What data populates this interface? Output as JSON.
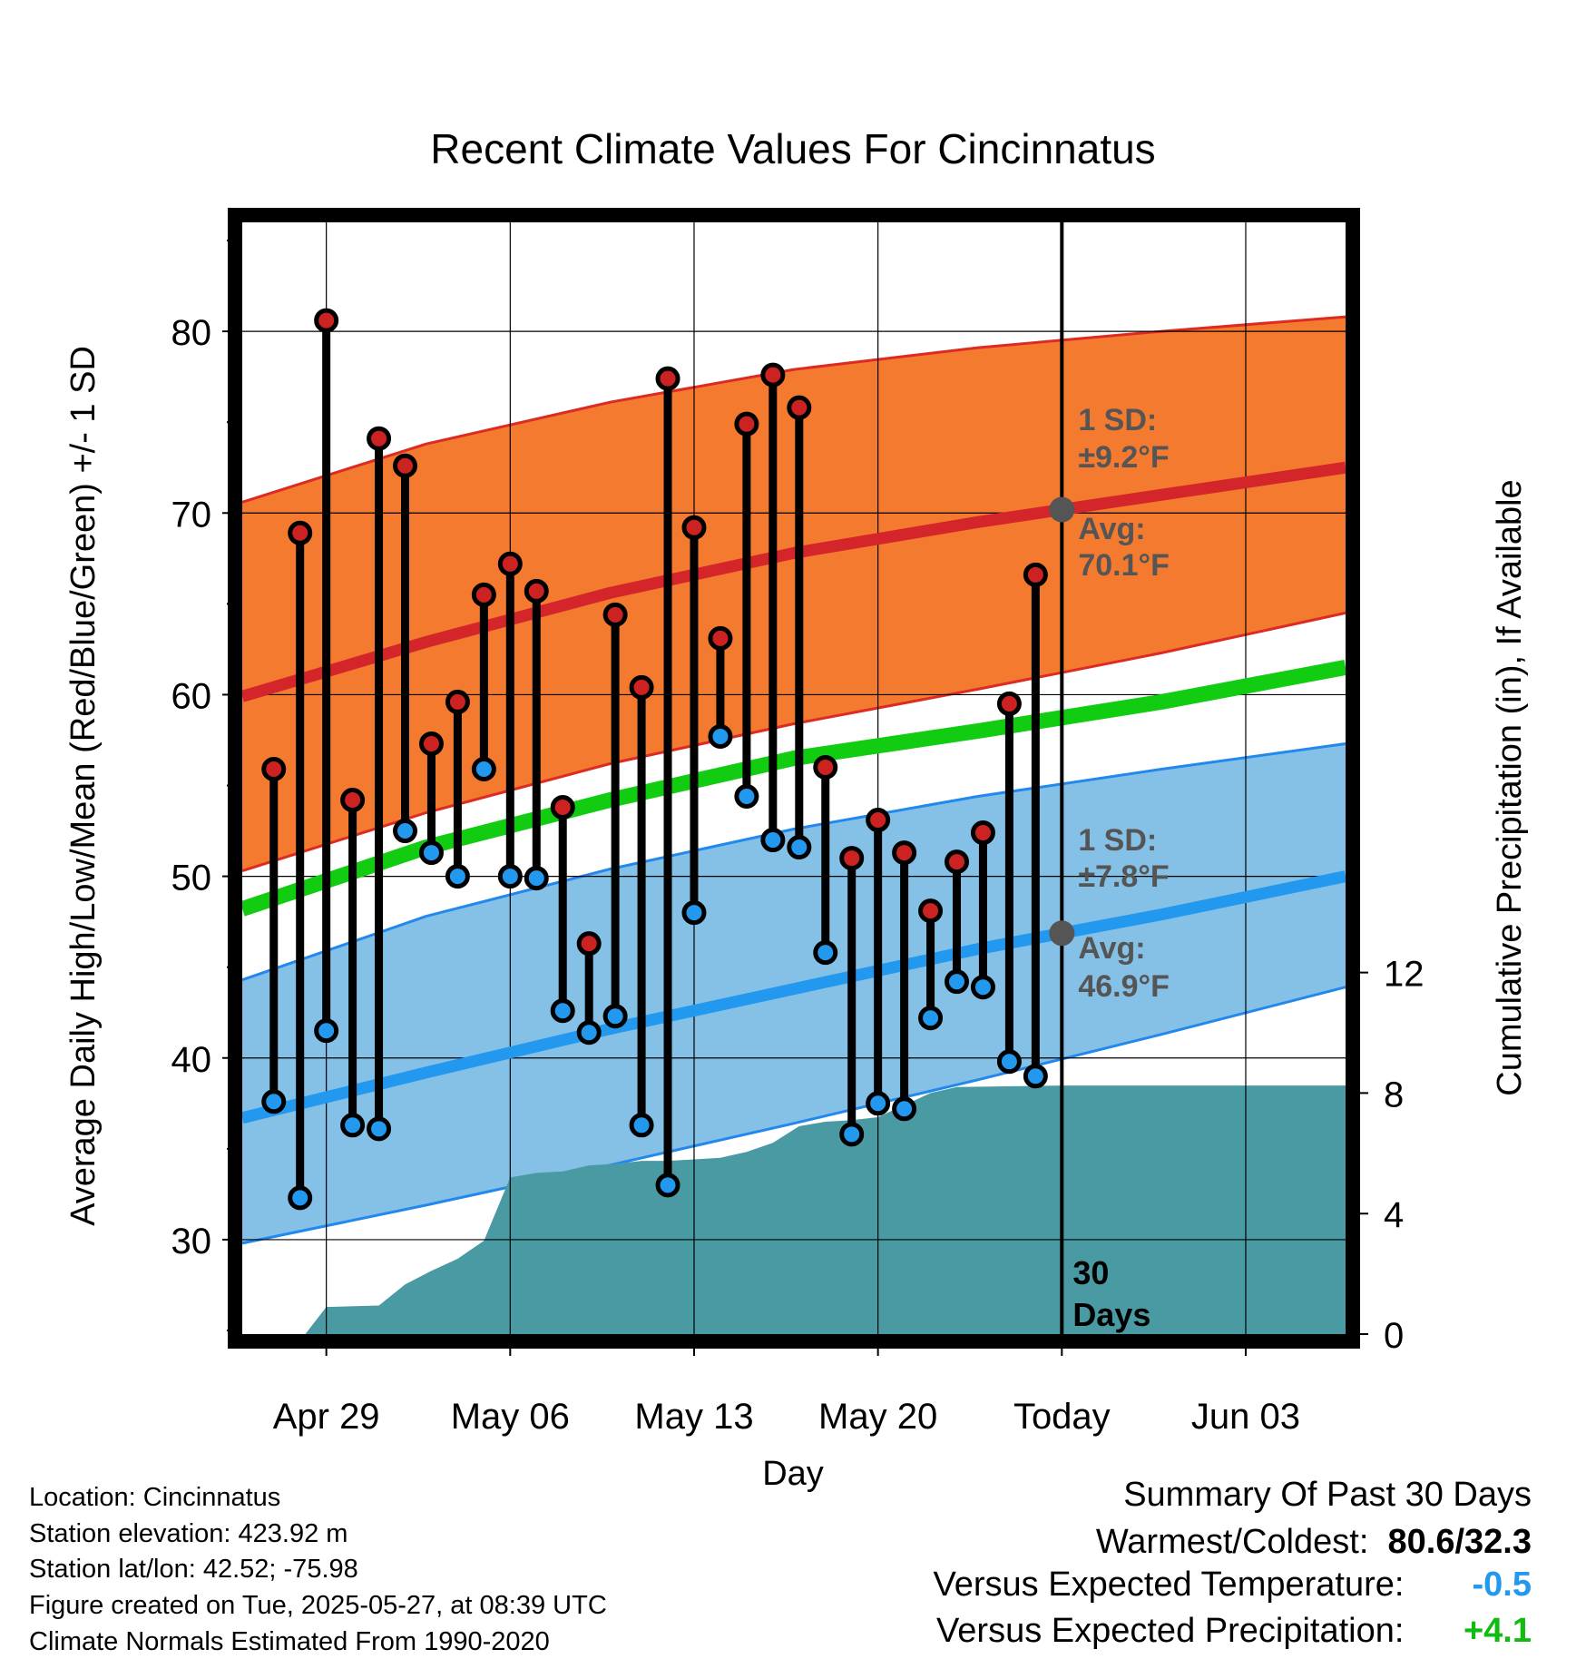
{
  "chart_data": {
    "type": "line",
    "title": "Recent Climate Values For Cincinnatus",
    "xlabel": "Day",
    "ylabel": "Average Daily High/Low/Mean (Red/Blue/Green) +/- 1 SD",
    "y2label": "Cumulative Precipitation (in), If Available",
    "xlim": [
      -3.2,
      38.8
    ],
    "ylim": [
      24.8,
      86
    ],
    "y2lim": [
      0,
      36.9
    ],
    "x_ticks": [
      {
        "x": 0,
        "label": "Apr 29"
      },
      {
        "x": 7,
        "label": "May 06"
      },
      {
        "x": 14,
        "label": "May 13"
      },
      {
        "x": 21,
        "label": "May 20"
      },
      {
        "x": 28,
        "label": "Today"
      },
      {
        "x": 35,
        "label": "Jun 03"
      }
    ],
    "y_ticks": [
      30,
      40,
      50,
      60,
      70,
      80
    ],
    "y2_ticks": [
      0,
      4,
      8,
      12
    ],
    "grid": true,
    "x_day0": "Apr 29",
    "today_x": 28,
    "period_label": "30 Days",
    "normals": {
      "x": [
        -3.2,
        3.8,
        10.8,
        17.8,
        24.8,
        31.8,
        38.8
      ],
      "high_avg": [
        59.9,
        62.9,
        65.6,
        67.8,
        69.5,
        71.0,
        72.5
      ],
      "high_upper": [
        70.6,
        73.8,
        76.1,
        77.9,
        79.1,
        80.0,
        80.8
      ],
      "high_lower": [
        50.3,
        53.5,
        56.2,
        58.4,
        60.3,
        62.3,
        64.5
      ],
      "mean_avg": [
        48.2,
        51.6,
        54.2,
        56.5,
        58.0,
        59.6,
        61.5
      ],
      "low_avg": [
        36.7,
        39.2,
        41.6,
        43.8,
        46.0,
        47.9,
        50.0
      ],
      "low_upper": [
        44.3,
        47.8,
        50.4,
        52.6,
        54.4,
        55.9,
        57.3
      ],
      "low_lower": [
        29.8,
        31.9,
        34.1,
        36.4,
        38.8,
        41.3,
        43.9
      ]
    },
    "series": [
      {
        "name": "High",
        "color": "#cc2222",
        "x": [
          -2,
          -1,
          0,
          1,
          2,
          3,
          4,
          5,
          6,
          7,
          8,
          9,
          10,
          11,
          12,
          13,
          14,
          15,
          16,
          17,
          18,
          19,
          20,
          21,
          22,
          23,
          24,
          25,
          26,
          27
        ],
        "values": [
          55.9,
          68.9,
          80.6,
          54.2,
          74.1,
          72.6,
          57.3,
          59.6,
          65.5,
          67.2,
          65.7,
          53.8,
          46.3,
          64.4,
          60.4,
          77.4,
          69.2,
          63.1,
          74.9,
          77.6,
          75.8,
          56.0,
          51.0,
          53.1,
          51.3,
          48.1,
          50.8,
          52.4,
          59.5,
          66.6
        ]
      },
      {
        "name": "Low",
        "color": "#2299ee",
        "x": [
          -2,
          -1,
          0,
          1,
          2,
          3,
          4,
          5,
          6,
          7,
          8,
          9,
          10,
          11,
          12,
          13,
          14,
          15,
          16,
          17,
          18,
          19,
          20,
          21,
          22,
          23,
          24,
          25,
          26,
          27
        ],
        "values": [
          37.6,
          32.3,
          41.5,
          36.3,
          36.1,
          52.5,
          51.3,
          50.0,
          55.9,
          50.0,
          49.9,
          42.6,
          41.4,
          42.3,
          36.3,
          33.0,
          48.0,
          57.7,
          54.4,
          52.0,
          51.6,
          45.8,
          35.8,
          37.5,
          37.2,
          42.2,
          44.2,
          43.9,
          39.8,
          39.0
        ]
      },
      {
        "name": "Cumulative Precipitation",
        "color": "#4a9aa4",
        "x": [
          -3.2,
          -0.8,
          0,
          2,
          3,
          4,
          5,
          6,
          7,
          8,
          9,
          10,
          11,
          12,
          13,
          14,
          15,
          16,
          17,
          18,
          19,
          20,
          21,
          22,
          23,
          24,
          28,
          38.8
        ],
        "values": [
          0,
          0,
          0.9,
          0.95,
          1.65,
          2.1,
          2.5,
          3.1,
          5.2,
          5.35,
          5.4,
          5.6,
          5.65,
          5.75,
          5.75,
          5.8,
          5.85,
          6.05,
          6.35,
          6.9,
          7.05,
          7.1,
          7.2,
          7.6,
          8.0,
          8.2,
          8.25,
          8.25
        ]
      }
    ],
    "annotations": {
      "high_sd_label": "1 SD:",
      "high_sd_value": "±9.2°F",
      "high_avg_label": "Avg:",
      "high_avg_value": "70.1°F",
      "low_sd_label": "1 SD:",
      "low_sd_value": "±7.8°F",
      "low_avg_label": "Avg:",
      "low_avg_value": "46.9°F"
    }
  },
  "info": {
    "location": "Location: Cincinnatus",
    "elevation": "Station elevation: 423.92 m",
    "latlon": "Station lat/lon: 42.52; -75.98",
    "created": "Figure created on Tue, 2025-05-27, at 08:39 UTC",
    "normals": "Climate Normals Estimated From 1990-2020"
  },
  "summary": {
    "heading": "Summary Of Past 30 Days",
    "warm_cold_label": "Warmest/Coldest:",
    "warm_cold_value": "80.6/32.3",
    "temp_label": "Versus Expected Temperature:",
    "temp_value": "-0.5",
    "temp_color": "#2299ee",
    "precip_label": "Versus Expected Precipitation:",
    "precip_value": "+4.1",
    "precip_color": "#11bb11"
  }
}
